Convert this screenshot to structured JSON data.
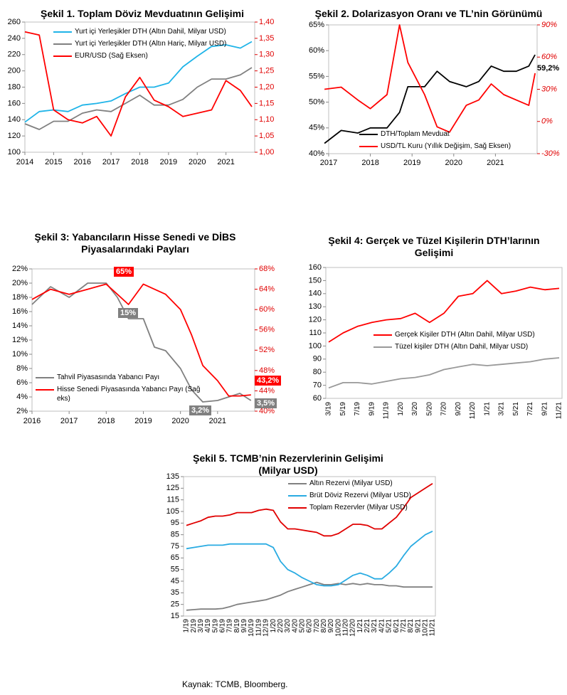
{
  "chart_data": [
    {
      "type": "line",
      "title": "Şekil 1. Toplam Döviz Mevduatının Gelişimi",
      "x": [
        2014,
        2014.5,
        2015,
        2015.5,
        2016,
        2016.5,
        2017,
        2017.5,
        2018,
        2018.5,
        2019,
        2019.5,
        2020,
        2020.5,
        2021,
        2021.5,
        2021.9
      ],
      "series": [
        {
          "name": "Yurt içi Yerleşikler DTH (Altın Dahil, Milyar USD)",
          "color": "#1fb4e8",
          "values": [
            137,
            150,
            152,
            150,
            158,
            160,
            163,
            172,
            180,
            180,
            185,
            205,
            218,
            230,
            232,
            228,
            236
          ]
        },
        {
          "name": "Yurt içi Yerleşikler DTH (Altın Hariç, Milyar USD)",
          "color": "#808080",
          "values": [
            135,
            128,
            138,
            138,
            148,
            152,
            150,
            160,
            170,
            158,
            158,
            165,
            180,
            190,
            190,
            195,
            204
          ]
        },
        {
          "name": "EUR/USD (Sağ Eksen)",
          "color": "#ff0000",
          "axis": "y2",
          "values": [
            1.37,
            1.36,
            1.13,
            1.1,
            1.09,
            1.11,
            1.05,
            1.17,
            1.23,
            1.16,
            1.14,
            1.11,
            1.12,
            1.13,
            1.22,
            1.19,
            1.14
          ]
        }
      ],
      "xlim": [
        2014,
        2022
      ],
      "xticks": [
        2014,
        2015,
        2016,
        2017,
        2018,
        2019,
        2020,
        2021
      ],
      "ylim": [
        100,
        260
      ],
      "yticks": [
        100,
        120,
        140,
        160,
        180,
        200,
        220,
        240,
        260
      ],
      "y2lim": [
        1.0,
        1.4
      ],
      "y2ticks": [
        {
          "value": 1.0,
          "label": "1,00"
        },
        {
          "value": 1.05,
          "label": "1,05"
        },
        {
          "value": 1.1,
          "label": "1,10"
        },
        {
          "value": 1.15,
          "label": "1,15"
        },
        {
          "value": 1.2,
          "label": "1,20"
        },
        {
          "value": 1.25,
          "label": "1,25"
        },
        {
          "value": 1.3,
          "label": "1,30"
        },
        {
          "value": 1.35,
          "label": "1,35"
        },
        {
          "value": 1.4,
          "label": "1,40"
        }
      ],
      "grid": false
    },
    {
      "type": "line",
      "title": "Şekil 2. Dolarizasyon Oranı ve TL’nin Görünümü",
      "x": [
        2016.9,
        2017.3,
        2017.7,
        2018.0,
        2018.4,
        2018.7,
        2018.9,
        2019.3,
        2019.6,
        2019.9,
        2020.3,
        2020.6,
        2020.9,
        2021.2,
        2021.5,
        2021.8,
        2021.95
      ],
      "series": [
        {
          "name": "DTH/Toplam Mevduat",
          "color": "#000000",
          "values": [
            42,
            44.5,
            44,
            45,
            45,
            48,
            53,
            53,
            56,
            54,
            53,
            54,
            57,
            56,
            56,
            57,
            59.2
          ]
        },
        {
          "name": "USD/TL Kuru (Yıllık Değişim, Sağ Eksen)",
          "color": "#ff0000",
          "axis": "y2",
          "values": [
            30,
            32,
            20,
            12,
            25,
            90,
            55,
            25,
            -5,
            -10,
            15,
            20,
            35,
            25,
            20,
            15,
            45
          ]
        }
      ],
      "annotations": [
        "59,2%"
      ],
      "xlim": [
        2017,
        2022
      ],
      "xticks": [
        2017,
        2018,
        2019,
        2020,
        2021
      ],
      "ylim": [
        40,
        65
      ],
      "yticks": [
        {
          "value": 40,
          "label": "40%"
        },
        {
          "value": 45,
          "label": "45%"
        },
        {
          "value": 50,
          "label": "50%"
        },
        {
          "value": 55,
          "label": "55%"
        },
        {
          "value": 60,
          "label": "60%"
        },
        {
          "value": 65,
          "label": "65%"
        }
      ],
      "y2lim": [
        -30,
        90
      ],
      "y2ticks": [
        {
          "value": -30,
          "label": "-30%"
        },
        {
          "value": 0,
          "label": "0%"
        },
        {
          "value": 30,
          "label": "30%"
        },
        {
          "value": 60,
          "label": "60%"
        },
        {
          "value": 90,
          "label": "90%"
        }
      ],
      "grid": false
    },
    {
      "type": "line",
      "title": "Şekil 3: Yabancıların Hisse Senedi ve DİBS Piyasalarındaki Payları",
      "x": [
        2016,
        2016.5,
        2017,
        2017.5,
        2018,
        2018.3,
        2018.6,
        2019,
        2019.3,
        2019.6,
        2020,
        2020.3,
        2020.6,
        2021,
        2021.3,
        2021.6,
        2021.9
      ],
      "series": [
        {
          "name": "Tahvil Piyasasında Yabancı Payı",
          "color": "#808080",
          "values": [
            17,
            19.5,
            18,
            20,
            20,
            18,
            15,
            15,
            11,
            10.5,
            8,
            5,
            3.3,
            3.5,
            4,
            4.5,
            3.5
          ]
        },
        {
          "name": "Hisse Senedi Piyasasında Yabancı Payı (Sağ eks)",
          "color": "#ff0000",
          "axis": "y2",
          "values": [
            62,
            64,
            63,
            64,
            65,
            63,
            61,
            65,
            64,
            63,
            60,
            55,
            49,
            46,
            43,
            43,
            43.2
          ]
        }
      ],
      "annotations": [
        "65%",
        "15%",
        "3,2%",
        "43,2%",
        "3,5%"
      ],
      "xlim": [
        2016,
        2022
      ],
      "xticks": [
        2016,
        2017,
        2018,
        2019,
        2020,
        2021
      ],
      "ylim": [
        2,
        22
      ],
      "yticks": [
        {
          "value": 2,
          "label": "2%"
        },
        {
          "value": 4,
          "label": "4%"
        },
        {
          "value": 6,
          "label": "6%"
        },
        {
          "value": 8,
          "label": "8%"
        },
        {
          "value": 10,
          "label": "10%"
        },
        {
          "value": 12,
          "label": "12%"
        },
        {
          "value": 14,
          "label": "14%"
        },
        {
          "value": 16,
          "label": "16%"
        },
        {
          "value": 18,
          "label": "18%"
        },
        {
          "value": 20,
          "label": "20%"
        },
        {
          "value": 22,
          "label": "22%"
        }
      ],
      "y2lim": [
        40,
        68
      ],
      "y2ticks": [
        {
          "value": 40,
          "label": "40%"
        },
        {
          "value": 44,
          "label": "44%"
        },
        {
          "value": 48,
          "label": "48%"
        },
        {
          "value": 52,
          "label": "52%"
        },
        {
          "value": 56,
          "label": "56%"
        },
        {
          "value": 60,
          "label": "60%"
        },
        {
          "value": 64,
          "label": "64%"
        },
        {
          "value": 68,
          "label": "68%"
        }
      ],
      "grid": false
    },
    {
      "type": "line",
      "title": "Şekil 4: Gerçek ve Tüzel Kişilerin DTH’larının Gelişimi",
      "categories": [
        "3/19",
        "5/19",
        "7/19",
        "9/19",
        "11/19",
        "1/20",
        "3/20",
        "5/20",
        "7/20",
        "9/20",
        "11/20",
        "1/21",
        "3/21",
        "5/21",
        "7/21",
        "9/21",
        "11/21"
      ],
      "series": [
        {
          "name": "Gerçek Kişiler DTH (Altın Dahil, Milyar USD)",
          "color": "#ff0000",
          "values": [
            103,
            110,
            115,
            118,
            120,
            121,
            125,
            118,
            125,
            138,
            140,
            150,
            140,
            142,
            145,
            143,
            144
          ]
        },
        {
          "name": "Tüzel kişiler DTH (Altın Dahil, Milyar USD)",
          "color": "#999999",
          "values": [
            68,
            72,
            72,
            71,
            73,
            75,
            76,
            78,
            82,
            84,
            86,
            85,
            86,
            87,
            88,
            90,
            91
          ]
        }
      ],
      "ylim": [
        60,
        160
      ],
      "yticks": [
        60,
        70,
        80,
        90,
        100,
        110,
        120,
        130,
        140,
        150,
        160
      ],
      "grid": false
    },
    {
      "type": "line",
      "title": "Şekil 5. TCMB’nin Rezervlerinin Gelişimi (Milyar USD)",
      "categories": [
        "1/19",
        "2/19",
        "3/19",
        "4/19",
        "5/19",
        "6/19",
        "7/19",
        "8/19",
        "9/19",
        "10/19",
        "11/19",
        "12/19",
        "1/20",
        "2/20",
        "3/20",
        "4/20",
        "5/20",
        "6/20",
        "7/20",
        "8/20",
        "9/20",
        "10/20",
        "11/20",
        "12/20",
        "1/21",
        "2/21",
        "3/21",
        "4/21",
        "5/21",
        "6/21",
        "7/21",
        "8/21",
        "9/21",
        "10/21",
        "11/21"
      ],
      "series": [
        {
          "name": "Altın Rezervi (Milyar USD)",
          "color": "#808080",
          "values": [
            20,
            20.5,
            21,
            21,
            21,
            21.5,
            23,
            25,
            26,
            27,
            28,
            29,
            31,
            33,
            36,
            38,
            40,
            42,
            44,
            42,
            42,
            43,
            42,
            43,
            42,
            43,
            42,
            42,
            41,
            41,
            40,
            40,
            40,
            40,
            40
          ]
        },
        {
          "name": "Brüt Döviz Rezervi (Milyar USD)",
          "color": "#29abe2",
          "values": [
            73,
            74,
            75,
            76,
            76,
            76,
            77,
            77,
            77,
            77,
            77,
            77,
            74,
            62,
            55,
            52,
            48,
            45,
            42,
            41,
            41,
            42,
            46,
            50,
            52,
            50,
            47,
            47,
            52,
            58,
            67,
            75,
            80,
            85,
            88
          ]
        },
        {
          "name": "Toplam Rezervler (Milyar USD)",
          "color": "#e00000",
          "values": [
            93,
            95,
            97,
            100,
            101,
            101,
            102,
            104,
            104,
            104,
            106,
            107,
            106,
            96,
            90,
            90,
            89,
            88,
            87,
            84,
            84,
            86,
            90,
            94,
            94,
            93,
            90,
            90,
            95,
            100,
            108,
            117,
            121,
            125,
            129
          ]
        }
      ],
      "ylim": [
        15,
        135
      ],
      "yticks": [
        15,
        25,
        35,
        45,
        55,
        65,
        75,
        85,
        95,
        105,
        115,
        125,
        135
      ],
      "grid": false
    }
  ],
  "source": "Kaynak: TCMB, Bloomberg."
}
